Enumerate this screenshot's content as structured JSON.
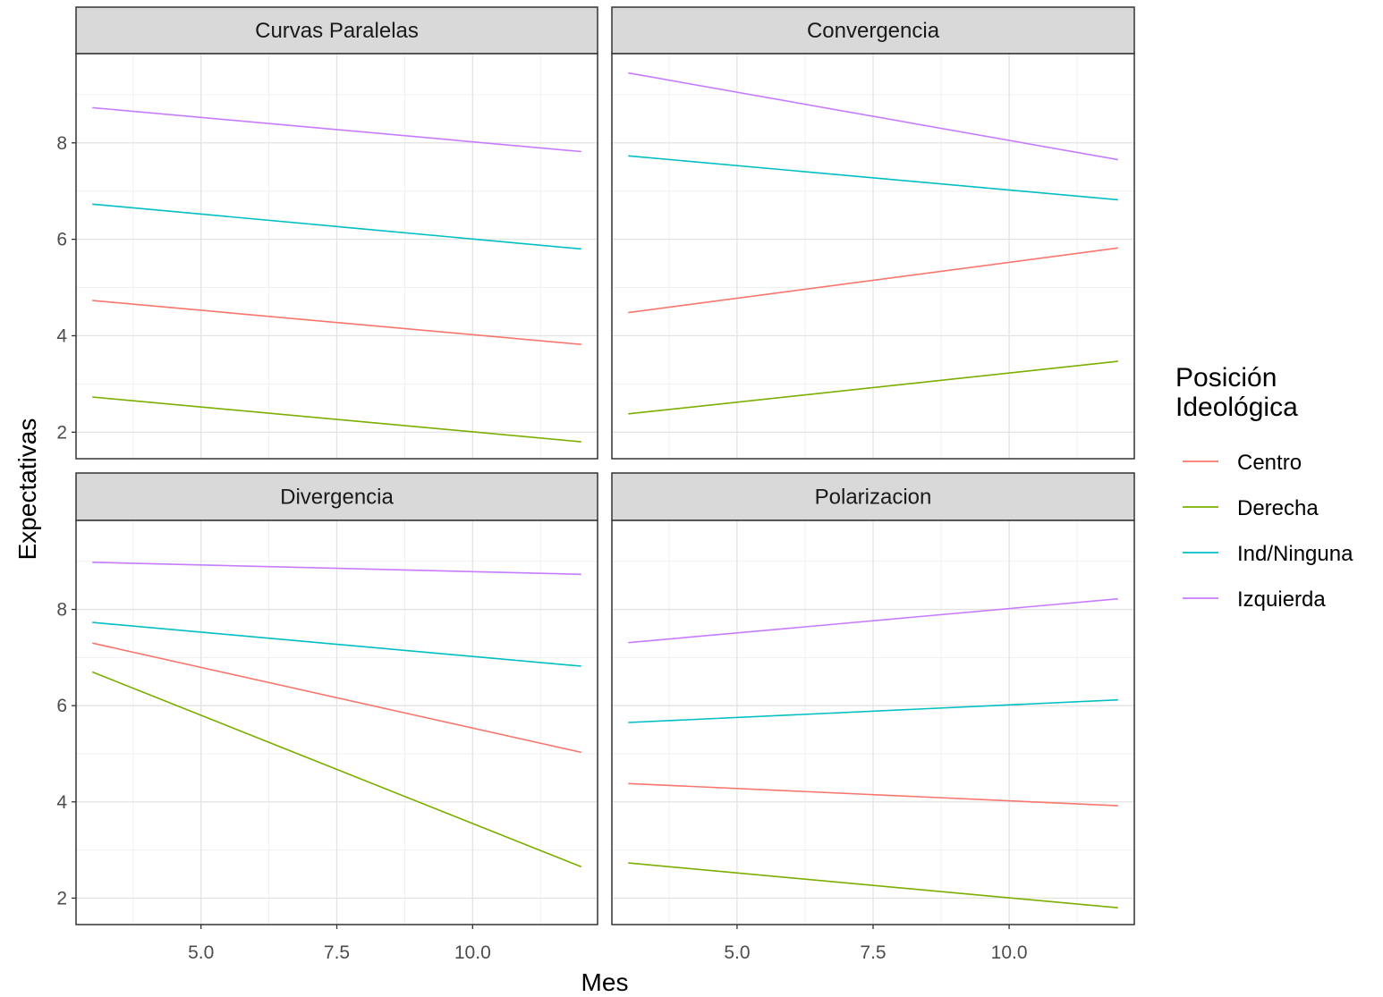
{
  "chart_data": {
    "type": "line",
    "xlabel": "Mes",
    "ylabel": "Expectativas",
    "xlim": [
      2.7,
      12.3
    ],
    "ylim": [
      1.45,
      9.85
    ],
    "x_ticks": [
      5.0,
      7.5,
      10.0
    ],
    "x_tick_labels": [
      "5.0",
      "7.5",
      "10.0"
    ],
    "y_ticks": [
      2,
      4,
      6,
      8
    ],
    "y_tick_labels": [
      "2",
      "4",
      "6",
      "8"
    ],
    "grid": true,
    "legend": {
      "title_lines": [
        "Posición",
        "Ideológica"
      ],
      "position": "right"
    },
    "series_colors": {
      "Centro": "#F8766D",
      "Derecha": "#7CAE00",
      "Ind/Ninguna": "#00BFC4",
      "Izquierda": "#C77CFF"
    },
    "panels": [
      {
        "title": "Curvas Paralelas",
        "series": [
          {
            "name": "Izquierda",
            "x": [
              3,
              12
            ],
            "y": [
              8.73,
              7.82
            ]
          },
          {
            "name": "Ind/Ninguna",
            "x": [
              3,
              12
            ],
            "y": [
              6.73,
              5.8
            ]
          },
          {
            "name": "Centro",
            "x": [
              3,
              12
            ],
            "y": [
              4.73,
              3.82
            ]
          },
          {
            "name": "Derecha",
            "x": [
              3,
              12
            ],
            "y": [
              2.73,
              1.8
            ]
          }
        ]
      },
      {
        "title": "Convergencia",
        "series": [
          {
            "name": "Izquierda",
            "x": [
              3,
              12
            ],
            "y": [
              9.45,
              7.65
            ]
          },
          {
            "name": "Ind/Ninguna",
            "x": [
              3,
              12
            ],
            "y": [
              7.73,
              6.82
            ]
          },
          {
            "name": "Centro",
            "x": [
              3,
              12
            ],
            "y": [
              4.48,
              5.82
            ]
          },
          {
            "name": "Derecha",
            "x": [
              3,
              12
            ],
            "y": [
              2.38,
              3.47
            ]
          }
        ]
      },
      {
        "title": "Divergencia",
        "series": [
          {
            "name": "Izquierda",
            "x": [
              3,
              12
            ],
            "y": [
              8.98,
              8.73
            ]
          },
          {
            "name": "Ind/Ninguna",
            "x": [
              3,
              12
            ],
            "y": [
              7.73,
              6.82
            ]
          },
          {
            "name": "Centro",
            "x": [
              3,
              12
            ],
            "y": [
              7.3,
              5.03
            ]
          },
          {
            "name": "Derecha",
            "x": [
              3,
              12
            ],
            "y": [
              6.7,
              2.65
            ]
          }
        ]
      },
      {
        "title": "Polarizacion",
        "series": [
          {
            "name": "Izquierda",
            "x": [
              3,
              12
            ],
            "y": [
              7.31,
              8.22
            ]
          },
          {
            "name": "Ind/Ninguna",
            "x": [
              3,
              12
            ],
            "y": [
              5.65,
              6.12
            ]
          },
          {
            "name": "Centro",
            "x": [
              3,
              12
            ],
            "y": [
              4.38,
              3.92
            ]
          },
          {
            "name": "Derecha",
            "x": [
              3,
              12
            ],
            "y": [
              2.73,
              1.8
            ]
          }
        ]
      }
    ]
  }
}
